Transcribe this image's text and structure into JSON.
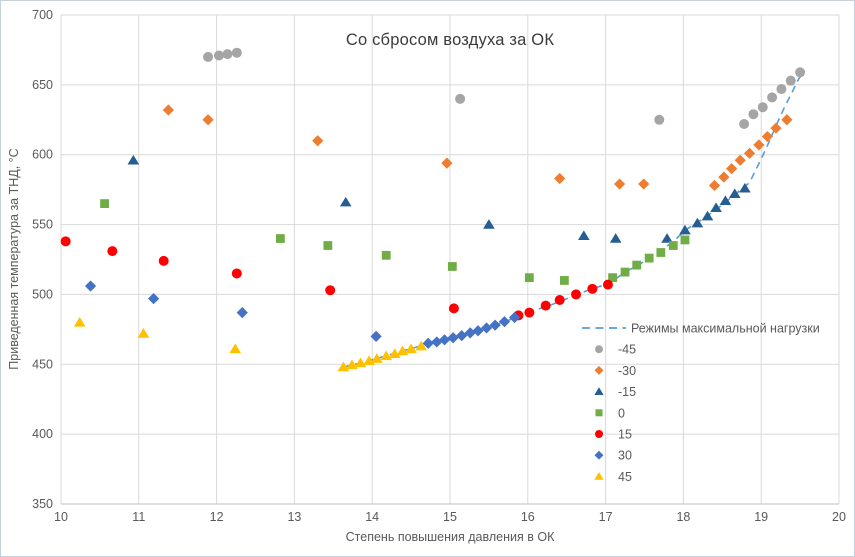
{
  "chart_data": {
    "type": "scatter",
    "title": "Со сбросом воздуха за ОК",
    "xlabel": "Степень повышения давления в ОК",
    "ylabel": "Приведенная температура за ТНД, °С",
    "xlim": [
      10,
      20
    ],
    "ylim": [
      350,
      700
    ],
    "x_ticks": [
      10,
      11,
      12,
      13,
      14,
      15,
      16,
      17,
      18,
      19,
      20
    ],
    "y_ticks": [
      350,
      400,
      450,
      500,
      550,
      600,
      650,
      700
    ],
    "grid": true,
    "legend_position": "middle-right",
    "colors": {
      "gridline": "#d9d9d9",
      "axis_line": "#bfbfbf",
      "tick_text": "#595959",
      "title_text": "#3b3b3b",
      "maxload_line": "#5b9bd5"
    },
    "maxload_line": {
      "label": "Режимы максимальной нагрузки",
      "color": "#5b9bd5",
      "style": "dashed",
      "points": [
        [
          13.63,
          448
        ],
        [
          13.85,
          451
        ],
        [
          14.05,
          454
        ],
        [
          14.3,
          458
        ],
        [
          14.55,
          462
        ],
        [
          14.8,
          466
        ],
        [
          15.05,
          469.5
        ],
        [
          15.3,
          473.5
        ],
        [
          15.55,
          477.5
        ],
        [
          15.8,
          482.5
        ],
        [
          16.05,
          488
        ],
        [
          16.3,
          492.5
        ],
        [
          16.55,
          498
        ],
        [
          16.8,
          503.5
        ],
        [
          17.05,
          508
        ],
        [
          17.25,
          516
        ],
        [
          17.45,
          522
        ],
        [
          17.65,
          529
        ],
        [
          17.85,
          537
        ],
        [
          18.05,
          547
        ],
        [
          18.25,
          554
        ],
        [
          18.45,
          562
        ],
        [
          18.65,
          571
        ],
        [
          18.85,
          580
        ],
        [
          19.0,
          597
        ],
        [
          19.1,
          609
        ],
        [
          19.2,
          622
        ],
        [
          19.3,
          634
        ],
        [
          19.4,
          645
        ],
        [
          19.48,
          654
        ],
        [
          19.53,
          658
        ]
      ]
    },
    "series": [
      {
        "name": "-45",
        "marker": "circle",
        "color": "#a5a5a5",
        "points": [
          [
            11.89,
            670
          ],
          [
            12.03,
            671
          ],
          [
            12.14,
            672
          ],
          [
            12.26,
            673
          ],
          [
            15.13,
            640
          ],
          [
            17.69,
            625
          ],
          [
            18.78,
            622
          ],
          [
            18.9,
            629
          ],
          [
            19.02,
            634
          ],
          [
            19.14,
            641
          ],
          [
            19.26,
            647
          ],
          [
            19.38,
            653
          ],
          [
            19.5,
            659
          ]
        ]
      },
      {
        "name": "-30",
        "marker": "diamond",
        "color": "#ed7d31",
        "points": [
          [
            11.38,
            632
          ],
          [
            11.89,
            625
          ],
          [
            13.3,
            610
          ],
          [
            14.96,
            594
          ],
          [
            16.41,
            583
          ],
          [
            17.18,
            579
          ],
          [
            17.49,
            579
          ],
          [
            18.4,
            578
          ],
          [
            18.52,
            584
          ],
          [
            18.62,
            590
          ],
          [
            18.73,
            596
          ],
          [
            18.85,
            601
          ],
          [
            18.97,
            607
          ],
          [
            19.08,
            613
          ],
          [
            19.19,
            619
          ],
          [
            19.33,
            625
          ]
        ]
      },
      {
        "name": "-15",
        "marker": "triangle",
        "color": "#255e91",
        "points": [
          [
            10.93,
            596
          ],
          [
            13.66,
            566
          ],
          [
            15.5,
            550
          ],
          [
            16.72,
            542
          ],
          [
            17.13,
            540
          ],
          [
            17.79,
            540
          ],
          [
            18.02,
            546
          ],
          [
            18.18,
            551
          ],
          [
            18.31,
            556
          ],
          [
            18.42,
            562
          ],
          [
            18.54,
            567
          ],
          [
            18.66,
            572
          ],
          [
            18.79,
            576
          ]
        ]
      },
      {
        "name": "0",
        "marker": "square",
        "color": "#70ad47",
        "points": [
          [
            10.56,
            565
          ],
          [
            12.82,
            540
          ],
          [
            13.43,
            535
          ],
          [
            14.18,
            528
          ],
          [
            15.03,
            520
          ],
          [
            16.02,
            512
          ],
          [
            16.47,
            510
          ],
          [
            17.09,
            512
          ],
          [
            17.25,
            516
          ],
          [
            17.4,
            521
          ],
          [
            17.56,
            526
          ],
          [
            17.71,
            530
          ],
          [
            17.87,
            535
          ],
          [
            18.02,
            539
          ]
        ]
      },
      {
        "name": "15",
        "marker": "circle",
        "color": "#ff0000",
        "points": [
          [
            10.06,
            538
          ],
          [
            10.66,
            531
          ],
          [
            11.32,
            524
          ],
          [
            12.26,
            515
          ],
          [
            13.46,
            503
          ],
          [
            15.05,
            490
          ],
          [
            15.88,
            485
          ],
          [
            16.02,
            487
          ],
          [
            16.23,
            492
          ],
          [
            16.41,
            496
          ],
          [
            16.62,
            500
          ],
          [
            16.83,
            504
          ],
          [
            17.03,
            507
          ]
        ]
      },
      {
        "name": "30",
        "marker": "diamond",
        "color": "#4472c4",
        "points": [
          [
            10.38,
            506
          ],
          [
            11.19,
            497
          ],
          [
            12.33,
            487
          ],
          [
            14.05,
            470
          ],
          [
            14.72,
            465
          ],
          [
            14.83,
            466
          ],
          [
            14.93,
            467.5
          ],
          [
            15.04,
            469
          ],
          [
            15.15,
            470.5
          ],
          [
            15.26,
            472.5
          ],
          [
            15.36,
            474
          ],
          [
            15.47,
            476
          ],
          [
            15.58,
            478
          ],
          [
            15.7,
            480.5
          ],
          [
            15.83,
            483.5
          ]
        ]
      },
      {
        "name": "45",
        "marker": "triangle",
        "color": "#ffc000",
        "points": [
          [
            10.24,
            480
          ],
          [
            11.06,
            472
          ],
          [
            12.24,
            461
          ],
          [
            13.63,
            448
          ],
          [
            13.74,
            449.5
          ],
          [
            13.85,
            451
          ],
          [
            13.96,
            452.5
          ],
          [
            14.06,
            454
          ],
          [
            14.18,
            456
          ],
          [
            14.29,
            457.5
          ],
          [
            14.39,
            459.5
          ],
          [
            14.5,
            461
          ],
          [
            14.63,
            463
          ]
        ]
      }
    ]
  }
}
